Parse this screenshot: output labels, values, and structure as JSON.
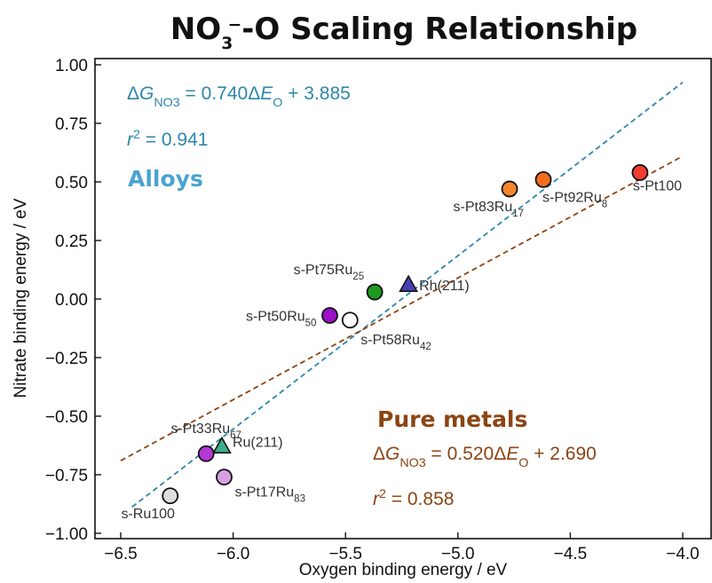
{
  "chart_data": {
    "type": "scatter",
    "title": "NO3−-O Scaling Relationship",
    "xlabel": "Oxygen binding energy / eV",
    "ylabel": "Nitrate binding energy / eV",
    "xlim": [
      -6.6,
      -3.95
    ],
    "ylim": [
      -1.0,
      1.0
    ],
    "xticks": [
      "−6.5",
      "−6.0",
      "−5.5",
      "−5.0",
      "−4.5",
      "−4.0"
    ],
    "yticks": [
      "1.00",
      "0.75",
      "0.50",
      "0.25",
      "0.00",
      "−0.25",
      "−0.50",
      "−0.75",
      "−1.00"
    ],
    "grid": false,
    "colors": {
      "alloys": "#2e86ab",
      "pure_metals": "#8b4513",
      "alloys_title": "#4aa3d1",
      "pure_title": "#8b4513"
    },
    "groups": {
      "alloys": {
        "name": "Alloys",
        "fit_text": "ΔG_NO3 = 0.740ΔE_O + 3.885",
        "slope": 0.74,
        "intercept": 3.885,
        "r2_text": "r^2 = 0.941",
        "line_x": [
          -6.45,
          -4.0
        ]
      },
      "pure_metals": {
        "name": "Pure metals",
        "fit_text": "ΔG_NO3 = 0.520ΔE_O + 2.690",
        "slope": 0.52,
        "intercept": 2.69,
        "r2_text": "r^2 = 0.858",
        "line_x": [
          -6.5,
          -4.0
        ]
      }
    },
    "points": [
      {
        "label": "s-Pt100",
        "x": -4.19,
        "y": 0.54,
        "marker": "circle",
        "color": "#f03c32"
      },
      {
        "label": "s-Pt92Ru8",
        "x": -4.62,
        "y": 0.51,
        "marker": "circle",
        "color": "#f26d1e"
      },
      {
        "label": "s-Pt83Ru17",
        "x": -4.77,
        "y": 0.47,
        "marker": "circle",
        "color": "#f5862e"
      },
      {
        "label": "Rh(211)",
        "x": -5.22,
        "y": 0.06,
        "marker": "triangle",
        "color": "#4b3fb5"
      },
      {
        "label": "s-Pt75Ru25",
        "x": -5.37,
        "y": 0.03,
        "marker": "circle",
        "color": "#1f9a1f"
      },
      {
        "label": "s-Pt50Ru50",
        "x": -5.57,
        "y": -0.07,
        "marker": "circle",
        "color": "#9b12c8"
      },
      {
        "label": "s-Pt58Ru42",
        "x": -5.48,
        "y": -0.09,
        "marker": "circle",
        "color": "#ffffff"
      },
      {
        "label": "Ru(211)",
        "x": -6.05,
        "y": -0.63,
        "marker": "triangle",
        "color": "#3bb08a"
      },
      {
        "label": "s-Pt33Ru67",
        "x": -6.12,
        "y": -0.66,
        "marker": "circle",
        "color": "#b536d6"
      },
      {
        "label": "s-Pt17Ru83",
        "x": -6.04,
        "y": -0.76,
        "marker": "circle",
        "color": "#d89fe2"
      },
      {
        "label": "s-Ru100",
        "x": -6.28,
        "y": -0.84,
        "marker": "circle",
        "color": "#dddddd"
      }
    ]
  }
}
